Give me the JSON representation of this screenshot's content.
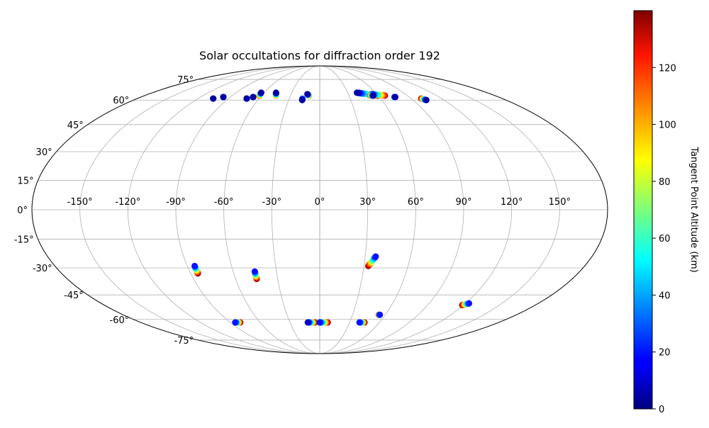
{
  "chart_data": {
    "type": "scatter",
    "projection": "mollweide",
    "title": "Solar occultations for diffraction order 192",
    "xlabel": "",
    "ylabel": "",
    "grid": true,
    "xlim": [
      -180,
      180
    ],
    "ylim": [
      -75,
      75
    ],
    "x_ticks": [
      -150,
      -120,
      -90,
      -60,
      -30,
      0,
      30,
      60,
      90,
      120,
      150
    ],
    "x_tick_labels": [
      "-150°",
      "-120°",
      "-90°",
      "-60°",
      "-30°",
      "0°",
      "30°",
      "60°",
      "90°",
      "120°",
      "150°"
    ],
    "y_ticks": [
      -75,
      -60,
      -45,
      -30,
      -15,
      0,
      15,
      30,
      45,
      60,
      75
    ],
    "y_tick_labels": [
      "-75°",
      "-60°",
      "-45°",
      "-30°",
      "-15°",
      "0°",
      "15°",
      "30°",
      "45°",
      "60°",
      "75°"
    ],
    "colormap": "jet",
    "colorbar": {
      "label": "Tangent Point Altitude (km)",
      "range": [
        0,
        140
      ],
      "ticks": [
        0,
        20,
        40,
        60,
        80,
        100,
        120
      ],
      "tick_labels": [
        "0",
        "20",
        "40",
        "60",
        "80",
        "100",
        "120"
      ]
    },
    "tracks": [
      {
        "lon_start": -105,
        "lat_start": 61,
        "lon_end": -105,
        "lat_end": 61,
        "alt_start": 110,
        "alt_end": 5
      },
      {
        "lon_start": -97,
        "lat_start": 62,
        "lon_end": -97,
        "lat_end": 62,
        "alt_start": 40,
        "alt_end": 5
      },
      {
        "lon_start": -72,
        "lat_start": 61,
        "lon_end": -72,
        "lat_end": 61,
        "alt_start": 40,
        "alt_end": 5
      },
      {
        "lon_start": -67,
        "lat_start": 62,
        "lon_end": -67,
        "lat_end": 62,
        "alt_start": 20,
        "alt_end": 5
      },
      {
        "lon_start": -62,
        "lat_start": 63,
        "lon_end": -63,
        "lat_end": 65,
        "alt_start": 110,
        "alt_end": 5
      },
      {
        "lon_start": -45,
        "lat_start": 63,
        "lon_end": -47,
        "lat_end": 65,
        "alt_start": 100,
        "alt_end": 5
      },
      {
        "lon_start": -11,
        "lat_start": 63,
        "lon_end": -13,
        "lat_end": 64,
        "alt_start": 100,
        "alt_end": 5
      },
      {
        "lon_start": -17,
        "lat_start": 61,
        "lon_end": -17,
        "lat_end": 60,
        "alt_start": 40,
        "alt_end": 5
      },
      {
        "lon_start": 60,
        "lat_start": 63,
        "lon_end": 40,
        "lat_end": 65,
        "alt_start": 130,
        "alt_end": 5
      },
      {
        "lon_start": 67,
        "lat_start": 63,
        "lon_end": 55,
        "lat_end": 64,
        "alt_start": 130,
        "alt_end": 20
      },
      {
        "lon_start": 52,
        "lat_start": 63,
        "lon_end": 55,
        "lat_end": 63,
        "alt_start": 120,
        "alt_end": 5
      },
      {
        "lon_start": 75,
        "lat_start": 62,
        "lon_end": 76,
        "lat_end": 62,
        "alt_start": 40,
        "alt_end": 5
      },
      {
        "lon_start": 100,
        "lat_start": 61,
        "lon_end": 103,
        "lat_end": 60,
        "alt_start": 130,
        "alt_end": 5
      },
      {
        "lon_start": -85,
        "lat_start": -33,
        "lon_end": -85,
        "lat_end": -29,
        "alt_start": 140,
        "alt_end": 20
      },
      {
        "lon_start": -45,
        "lat_start": -36,
        "lon_end": -45,
        "lat_end": -32,
        "alt_start": 140,
        "alt_end": 20
      },
      {
        "lon_start": 33,
        "lat_start": -29,
        "lon_end": 37,
        "lat_end": -24,
        "alt_start": 140,
        "alt_end": 20
      },
      {
        "lon_start": 119,
        "lat_start": -51,
        "lon_end": 123,
        "lat_end": -50,
        "alt_start": 140,
        "alt_end": 20
      },
      {
        "lon_start": 54,
        "lat_start": -57,
        "lon_end": 55,
        "lat_end": -57,
        "alt_start": 140,
        "alt_end": 20
      },
      {
        "lon_start": -80,
        "lat_start": -62,
        "lon_end": -85,
        "lat_end": -62,
        "alt_start": 140,
        "alt_end": 20
      },
      {
        "lon_start": -5,
        "lat_start": -62,
        "lon_end": -12,
        "lat_end": -62,
        "alt_start": 140,
        "alt_end": 10
      },
      {
        "lon_start": 8,
        "lat_start": -62,
        "lon_end": 0,
        "lat_end": -62,
        "alt_start": 140,
        "alt_end": 20
      },
      {
        "lon_start": 45,
        "lat_start": -62,
        "lon_end": 40,
        "lat_end": -62,
        "alt_start": 140,
        "alt_end": 20
      }
    ]
  }
}
